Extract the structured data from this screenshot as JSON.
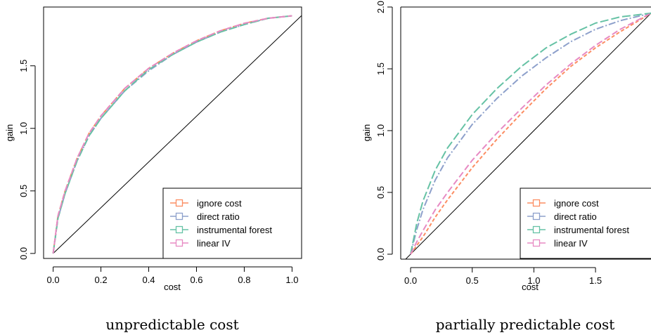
{
  "colors": {
    "ignore_cost": "#FC8D62",
    "direct_ratio": "#8DA0CB",
    "instrumental_forest": "#66C2A5",
    "linear_iv": "#E78AC3"
  },
  "chart_data": [
    {
      "type": "line",
      "caption": "unpredictable cost",
      "xlabel": "cost",
      "ylabel": "gain",
      "xlim": [
        -0.04,
        1.04
      ],
      "ylim": [
        -0.04,
        1.97
      ],
      "x_ticks": [
        0.0,
        0.2,
        0.4,
        0.6,
        0.8,
        1.0
      ],
      "x_tick_labels": [
        "0.0",
        "0.2",
        "0.4",
        "0.6",
        "0.8",
        "1.0"
      ],
      "y_ticks": [
        0.0,
        0.5,
        1.0,
        1.5
      ],
      "y_tick_labels": [
        "0.0",
        "0.5",
        "1.0",
        "1.5"
      ],
      "grid": false,
      "legend_position": "bottom-right",
      "reference_line": {
        "x": [
          0,
          1.05
        ],
        "y": [
          0,
          1.92
        ]
      },
      "series": [
        {
          "name": "ignore cost",
          "color_key": "ignore_cost",
          "dash": "5,3",
          "x": [
            0,
            0.02,
            0.05,
            0.1,
            0.15,
            0.2,
            0.3,
            0.4,
            0.5,
            0.6,
            0.7,
            0.8,
            0.9,
            1.0
          ],
          "y": [
            0,
            0.3,
            0.5,
            0.76,
            0.96,
            1.1,
            1.32,
            1.48,
            1.6,
            1.7,
            1.78,
            1.84,
            1.88,
            1.9
          ]
        },
        {
          "name": "direct ratio",
          "color_key": "direct_ratio",
          "dash": "10,3,2,3",
          "x": [
            0,
            0.02,
            0.05,
            0.1,
            0.15,
            0.2,
            0.3,
            0.4,
            0.5,
            0.6,
            0.7,
            0.8,
            0.9,
            1.0
          ],
          "y": [
            0,
            0.28,
            0.48,
            0.74,
            0.94,
            1.08,
            1.3,
            1.46,
            1.59,
            1.69,
            1.77,
            1.83,
            1.88,
            1.9
          ]
        },
        {
          "name": "instrumental forest",
          "color_key": "instrumental_forest",
          "dash": "12,4",
          "x": [
            0,
            0.02,
            0.05,
            0.1,
            0.15,
            0.2,
            0.3,
            0.4,
            0.5,
            0.6,
            0.7,
            0.8,
            0.9,
            1.0
          ],
          "y": [
            0,
            0.28,
            0.48,
            0.74,
            0.94,
            1.08,
            1.3,
            1.47,
            1.59,
            1.69,
            1.77,
            1.83,
            1.88,
            1.9
          ]
        },
        {
          "name": "linear IV",
          "color_key": "linear_iv",
          "dash": "9,4",
          "x": [
            0,
            0.02,
            0.05,
            0.1,
            0.15,
            0.2,
            0.3,
            0.4,
            0.5,
            0.6,
            0.7,
            0.8,
            0.9,
            1.0
          ],
          "y": [
            0,
            0.3,
            0.5,
            0.76,
            0.96,
            1.1,
            1.32,
            1.48,
            1.6,
            1.7,
            1.78,
            1.84,
            1.88,
            1.9
          ]
        }
      ]
    },
    {
      "type": "line",
      "caption": "partially predictable cost",
      "xlabel": "cost",
      "ylabel": "gain",
      "xlim": [
        -0.08,
        1.95
      ],
      "ylim": [
        -0.04,
        2.0
      ],
      "x_ticks": [
        0.0,
        0.5,
        1.0,
        1.5
      ],
      "x_tick_labels": [
        "0.0",
        "0.5",
        "1.0",
        "1.5"
      ],
      "y_ticks": [
        0.0,
        0.5,
        1.0,
        1.5,
        2.0
      ],
      "y_tick_labels": [
        "0.0",
        "0.5",
        "1.0",
        "1.5",
        "2.0"
      ],
      "grid": false,
      "legend_position": "bottom-right",
      "reference_line": {
        "x": [
          -0.08,
          1.95
        ],
        "y": [
          -0.08,
          1.95
        ]
      },
      "series": [
        {
          "name": "ignore cost",
          "color_key": "ignore_cost",
          "dash": "5,3",
          "x": [
            0,
            0.05,
            0.1,
            0.2,
            0.3,
            0.5,
            0.7,
            0.9,
            1.1,
            1.3,
            1.5,
            1.7,
            1.95
          ],
          "y": [
            0,
            0.07,
            0.14,
            0.3,
            0.44,
            0.7,
            0.93,
            1.14,
            1.34,
            1.52,
            1.67,
            1.8,
            1.95
          ]
        },
        {
          "name": "direct ratio",
          "color_key": "direct_ratio",
          "dash": "10,3,2,3",
          "x": [
            0,
            0.05,
            0.1,
            0.2,
            0.3,
            0.5,
            0.7,
            0.9,
            1.1,
            1.3,
            1.5,
            1.7,
            1.95
          ],
          "y": [
            0,
            0.2,
            0.36,
            0.6,
            0.78,
            1.05,
            1.26,
            1.44,
            1.59,
            1.72,
            1.82,
            1.89,
            1.95
          ]
        },
        {
          "name": "instrumental forest",
          "color_key": "instrumental_forest",
          "dash": "12,4",
          "x": [
            0,
            0.05,
            0.1,
            0.2,
            0.3,
            0.5,
            0.7,
            0.9,
            1.1,
            1.3,
            1.5,
            1.7,
            1.95
          ],
          "y": [
            0,
            0.25,
            0.43,
            0.68,
            0.86,
            1.13,
            1.34,
            1.52,
            1.67,
            1.78,
            1.87,
            1.92,
            1.95
          ]
        },
        {
          "name": "linear IV",
          "color_key": "linear_iv",
          "dash": "9,4",
          "x": [
            0,
            0.05,
            0.1,
            0.2,
            0.3,
            0.5,
            0.7,
            0.9,
            1.1,
            1.3,
            1.5,
            1.7,
            1.95
          ],
          "y": [
            0,
            0.1,
            0.19,
            0.36,
            0.5,
            0.76,
            0.98,
            1.18,
            1.37,
            1.54,
            1.69,
            1.82,
            1.95
          ]
        }
      ]
    }
  ]
}
